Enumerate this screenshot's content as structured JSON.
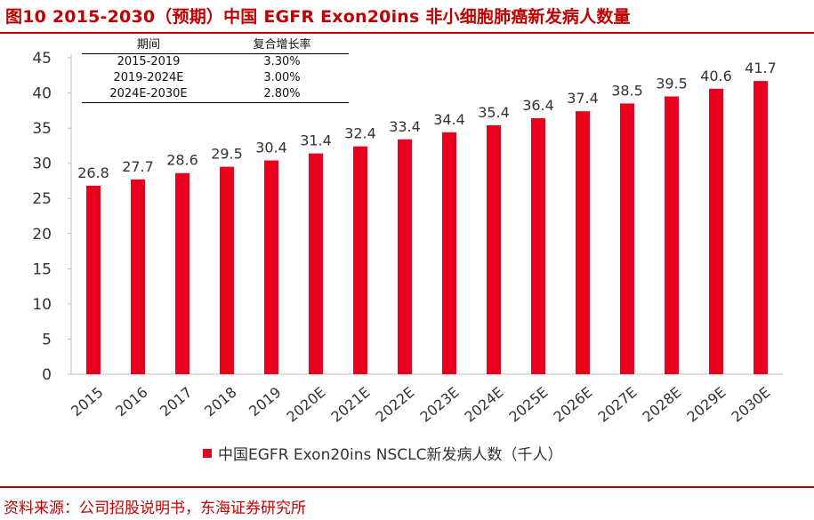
{
  "figure": {
    "title": "图10  2015-2030（预期）中国 EGFR Exon20ins 非小细胞肺癌新发病人数量",
    "source": "资料来源：公司招股说明书，东海证券研究所"
  },
  "growth_table": {
    "headers": [
      "期间",
      "复合增长率"
    ],
    "rows": [
      [
        "2015-2019",
        "3.30%"
      ],
      [
        "2019-2024E",
        "3.00%"
      ],
      [
        "2024E-2030E",
        "2.80%"
      ]
    ]
  },
  "chart_data": {
    "type": "bar",
    "title": "",
    "xlabel": "",
    "ylabel": "",
    "categories": [
      "2015",
      "2016",
      "2017",
      "2018",
      "2019",
      "2020E",
      "2021E",
      "2022E",
      "2023E",
      "2024E",
      "2025E",
      "2026E",
      "2027E",
      "2028E",
      "2029E",
      "2030E"
    ],
    "series": [
      {
        "name": "中国EGFR Exon20ins NSCLC新发病人数（千人）",
        "values": [
          26.8,
          27.7,
          28.6,
          29.5,
          30.4,
          31.4,
          32.4,
          33.4,
          34.4,
          35.4,
          36.4,
          37.4,
          38.5,
          39.5,
          40.6,
          41.7
        ],
        "color": "#e8001c"
      }
    ],
    "ylim": [
      0,
      45
    ],
    "yticks": [
      0,
      5,
      10,
      15,
      20,
      25,
      30,
      35,
      40,
      45
    ],
    "grid": false,
    "legend_position": "bottom-center"
  }
}
